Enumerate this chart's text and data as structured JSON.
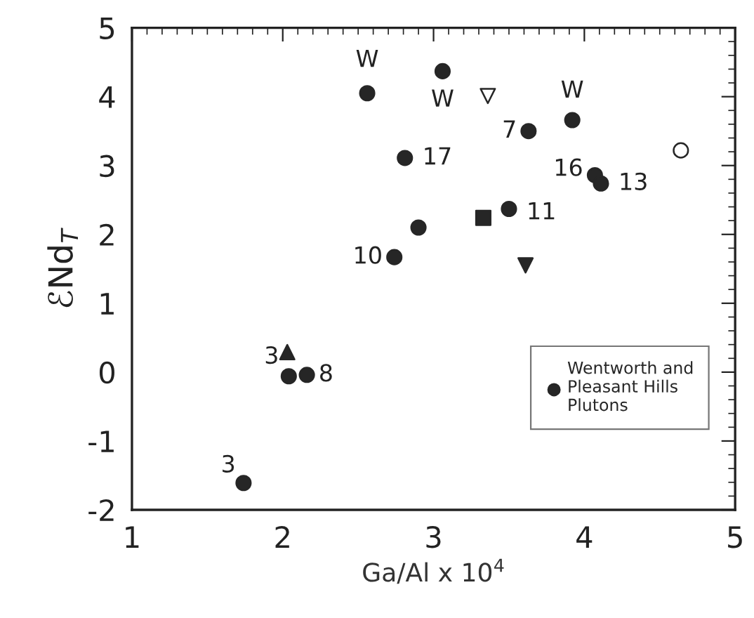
{
  "chart_data": {
    "type": "scatter",
    "xlabel": "Ga/Al x 10$^{4}$",
    "ylabel": "ℰNd$_{T}$",
    "xlim": [
      1,
      5
    ],
    "ylim": [
      -2,
      5
    ],
    "xticks": [
      1,
      2,
      3,
      4,
      5
    ],
    "yticks": [
      -2,
      -1,
      0,
      1,
      2,
      3,
      4,
      5
    ],
    "grid": false,
    "legend": "bottom right",
    "series": [
      {
        "name": "Wentworth and\nPleasant Hills\nPlutons",
        "color": "#262626",
        "marker": "circle",
        "x": [
          2.56,
          3.06,
          3.92,
          2.81,
          2.74,
          2.9,
          3.63,
          4.07,
          4.11,
          3.5,
          2.04,
          2.16,
          1.74
        ],
        "values": [
          4.05,
          4.37,
          3.66,
          3.11,
          1.67,
          2.1,
          3.5,
          2.86,
          2.74,
          2.37,
          -0.06,
          -0.04,
          -1.61
        ]
      },
      {
        "color": "#262626",
        "marker": "triangle_down_open",
        "x": [
          3.36
        ],
        "values": [
          4.01
        ]
      },
      {
        "color": "#262626",
        "marker": "circle_open",
        "x": [
          4.64
        ],
        "values": [
          3.22
        ]
      },
      {
        "color": "#262626",
        "marker": "square",
        "x": [
          3.33
        ],
        "values": [
          2.24
        ]
      },
      {
        "color": "#262626",
        "marker": "triangle_down",
        "x": [
          3.61
        ],
        "values": [
          1.55
        ]
      },
      {
        "color": "#262626",
        "marker": "triangle",
        "x": [
          2.03
        ],
        "values": [
          0.29
        ]
      }
    ],
    "annotations": [
      {
        "text": "W",
        "x": 2.56,
        "y": 4.05
      },
      {
        "text": "W",
        "x": 3.06,
        "y": 4.37
      },
      {
        "text": "W",
        "x": 3.92,
        "y": 3.66
      },
      {
        "text": "17",
        "x": 2.81,
        "y": 3.11
      },
      {
        "text": "10",
        "x": 2.74,
        "y": 1.67
      },
      {
        "text": "7",
        "x": 3.63,
        "y": 3.5
      },
      {
        "text": "16",
        "x": 4.07,
        "y": 2.86
      },
      {
        "text": "13",
        "x": 4.11,
        "y": 2.74
      },
      {
        "text": "11",
        "x": 3.5,
        "y": 2.37
      },
      {
        "text": "3",
        "x": 2.04,
        "y": -0.06
      },
      {
        "text": "8",
        "x": 2.16,
        "y": -0.04
      },
      {
        "text": "3",
        "x": 1.74,
        "y": -1.61
      }
    ]
  }
}
